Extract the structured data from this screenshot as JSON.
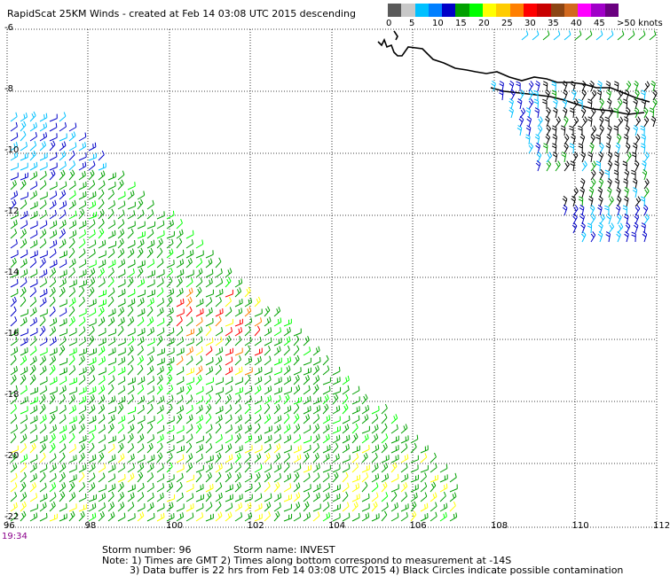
{
  "title": "RapidScat 25KM Winds - created at Feb 14 03:08 UTC 2015 descending",
  "legend": {
    "labels": [
      "0",
      "5",
      "10",
      "15",
      "20",
      "25",
      "30",
      "35",
      "40",
      "45",
      ">50 knots"
    ],
    "colors": [
      "#5a5a5a",
      "#c8c8c8",
      "#00c0ff",
      "#007fff",
      "#0000c8",
      "#00a000",
      "#00ff00",
      "#ffff00",
      "#ffcc00",
      "#ff7f00",
      "#ff0000",
      "#c80000",
      "#8b4513",
      "#d2691e",
      "#ff00ff",
      "#a000c8",
      "#6a0080"
    ]
  },
  "map": {
    "y_ticks": [
      "-6",
      "-8",
      "-10",
      "-12",
      "-14",
      "-16",
      "-18",
      "-20",
      "-22"
    ],
    "x_ticks": [
      "96",
      "98",
      "100",
      "102",
      "104",
      "106",
      "108",
      "110",
      "112"
    ],
    "time_mark": "19:34"
  },
  "footer": {
    "storm_number": "Storm number: 96",
    "storm_name": "Storm name: INVEST",
    "note1": "Note: 1) Times are GMT  2) Times along bottom correspond to measurement at -14S",
    "note2": "3) Data buffer is 22 hrs from Feb 14 03:08 UTC 2015  4) Black Circles indicate possible contamination"
  },
  "colors": {
    "black_barbs": "#000000",
    "cyan_barbs": "#00c0ff",
    "blue_barbs": "#0000c8",
    "green_barbs": "#00a000",
    "lime_barbs": "#00ff00",
    "yellow_barbs": "#ffff00",
    "orange_barbs": "#ff7f00",
    "red_barbs": "#ff0000"
  }
}
